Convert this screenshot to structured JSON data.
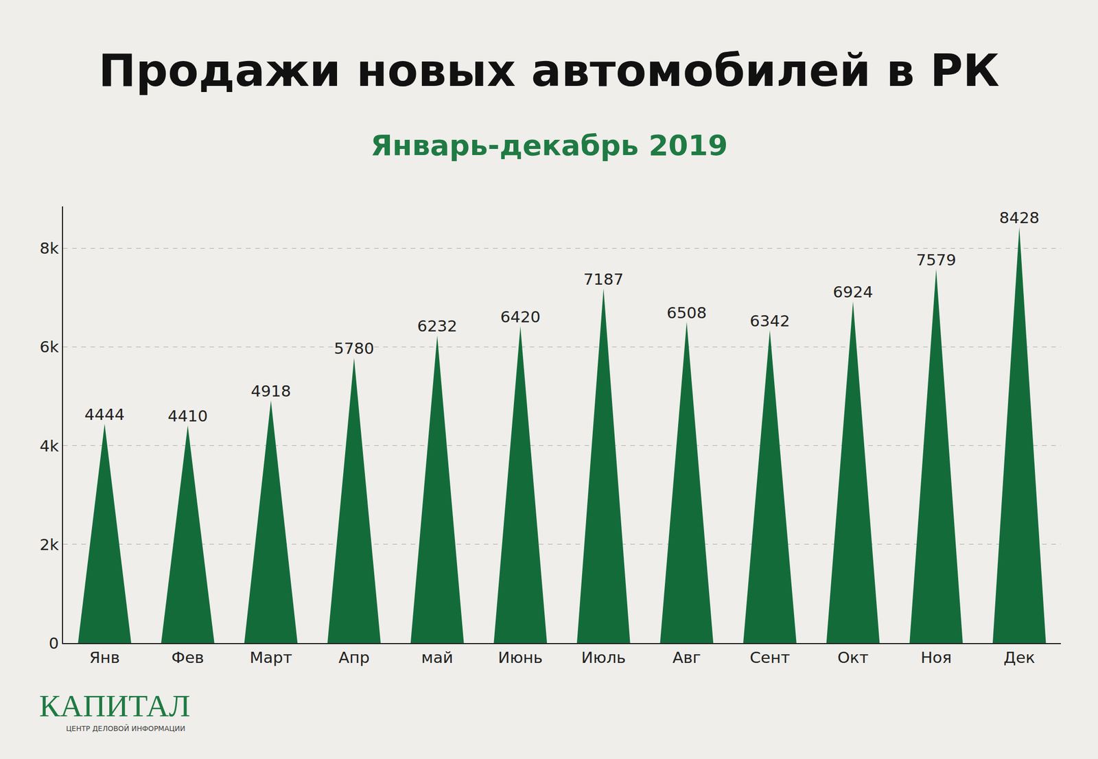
{
  "chart_data": {
    "type": "bar",
    "marker": "triangle",
    "title": "Продажи новых автомобилей в РК",
    "subtitle": "Январь-декабрь 2019",
    "annotations": [
      "КАПИТАЛ",
      "ЦЕНТР ДЕЛОВОЙ ИНФОРМАЦИИ"
    ],
    "categories": [
      "Янв",
      "Фев",
      "Март",
      "Апр",
      "май",
      "Июнь",
      "Июль",
      "Авг",
      "Сент",
      "Окт",
      "Ноя",
      "Дек"
    ],
    "values": [
      4444,
      4410,
      4918,
      5780,
      6232,
      6420,
      7187,
      6508,
      6342,
      6924,
      7579,
      8428
    ],
    "color": "#146b3a",
    "ylim": [
      0,
      8850
    ],
    "yticks": [
      0,
      {
        "value": 2000,
        "label": "2k"
      },
      {
        "value": 4000,
        "label": "4k"
      },
      {
        "value": 6000,
        "label": "6k"
      },
      {
        "value": 8000,
        "label": "8k"
      }
    ],
    "grid": true,
    "data_labels": true
  }
}
